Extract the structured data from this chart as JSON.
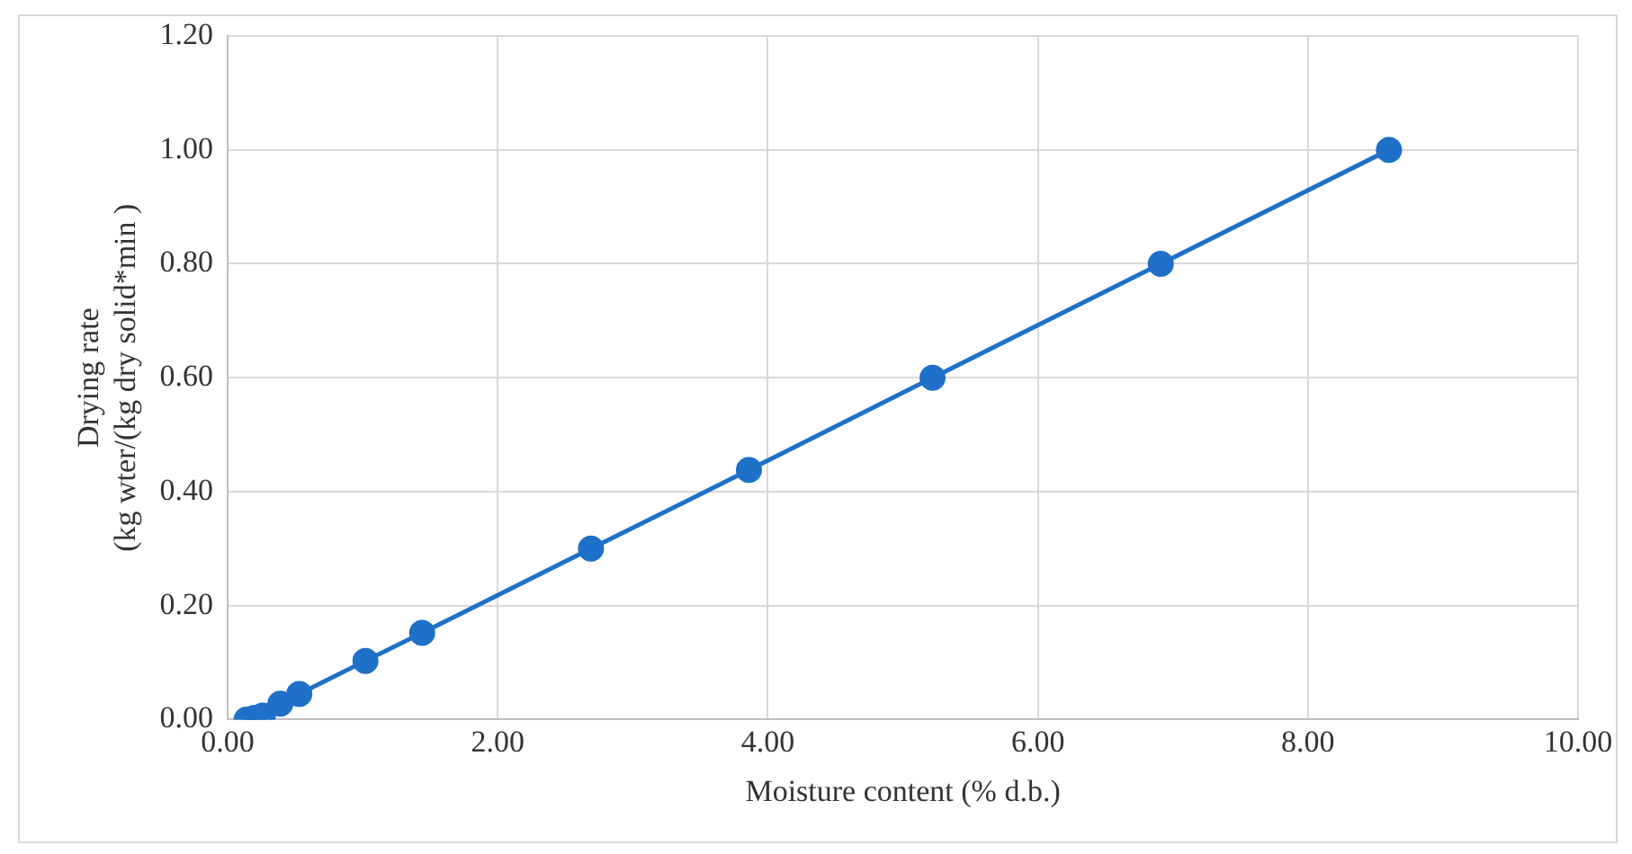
{
  "chart_data": {
    "type": "line",
    "xlabel": "Moisture content (% d.b.)",
    "ylabel": "Drying rate\n(kg wter/(kg dry solid*min )",
    "x": [
      0.14,
      0.2,
      0.26,
      0.39,
      0.53,
      1.02,
      1.44,
      2.69,
      3.86,
      5.22,
      6.91,
      8.6
    ],
    "series": [
      {
        "color": "#1f70c8",
        "values": [
          0.0,
          0.003,
          0.007,
          0.028,
          0.045,
          0.103,
          0.152,
          0.3,
          0.438,
          0.6,
          0.8,
          1.0
        ]
      }
    ],
    "xlim": [
      0,
      10
    ],
    "xticks": [
      {
        "value": 0,
        "label": "0.00"
      },
      {
        "value": 2,
        "label": "2.00"
      },
      {
        "value": 4,
        "label": "4.00"
      },
      {
        "value": 6,
        "label": "6.00"
      },
      {
        "value": 8,
        "label": "8.00"
      },
      {
        "value": 10,
        "label": "10.00"
      }
    ],
    "ylim": [
      0,
      1.2
    ],
    "yticks": [
      {
        "value": 0,
        "label": "0.00"
      },
      {
        "value": 0.2,
        "label": "0.20"
      },
      {
        "value": 0.4,
        "label": "0.40"
      },
      {
        "value": 0.6,
        "label": "0.60"
      },
      {
        "value": 0.8,
        "label": "0.80"
      },
      {
        "value": 1,
        "label": "1.00"
      },
      {
        "value": 1.2,
        "label": "1.20"
      }
    ],
    "grid": true,
    "legend": false,
    "marker": "circle",
    "line_style": "solid"
  }
}
